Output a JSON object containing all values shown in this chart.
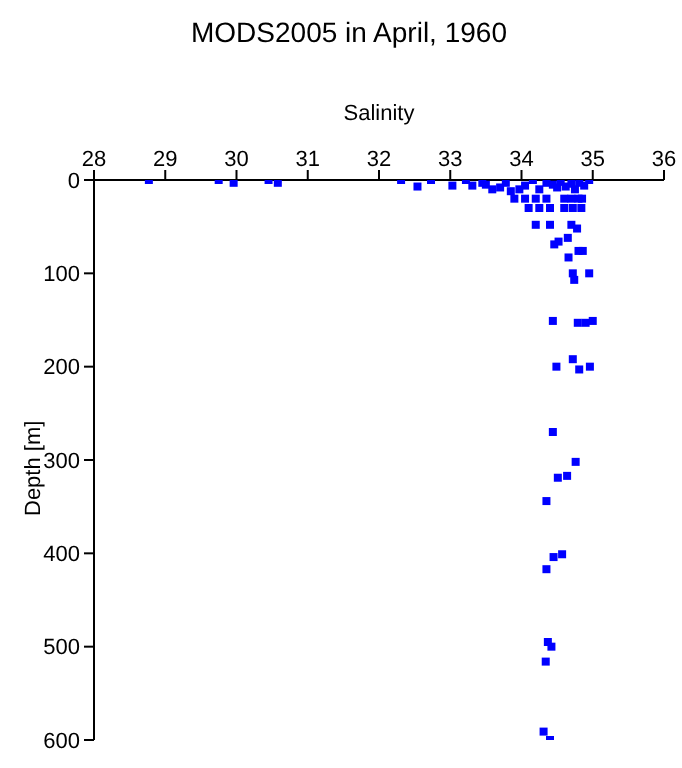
{
  "chart_data": {
    "type": "scatter",
    "title": "MODS2005 in April, 1960",
    "xlabel": "Salinity",
    "ylabel": "Depth [m]",
    "x": [
      28.77,
      29.75,
      29.96,
      30.45,
      30.58,
      32.31,
      32.54,
      32.73,
      33.03,
      33.22,
      33.31,
      33.45,
      33.5,
      33.59,
      33.7,
      33.78,
      33.85,
      33.97,
      34.05,
      34.16,
      34.25,
      34.35,
      34.44,
      34.5,
      34.55,
      34.62,
      34.7,
      34.75,
      34.81,
      34.88,
      34.95,
      33.9,
      34.05,
      34.2,
      34.35,
      34.6,
      34.7,
      34.8,
      34.85,
      34.1,
      34.25,
      34.4,
      34.6,
      34.72,
      34.84,
      34.2,
      34.4,
      34.7,
      34.78,
      34.65,
      34.46,
      34.52,
      34.8,
      34.86,
      34.66,
      34.72,
      34.95,
      34.74,
      34.44,
      34.79,
      34.9,
      35.0,
      34.49,
      34.72,
      34.81,
      34.96,
      34.44,
      34.76,
      34.51,
      34.64,
      34.35,
      34.57,
      34.45,
      34.35,
      34.37,
      34.42,
      34.34,
      34.31,
      34.4
    ],
    "values": [
      0,
      0,
      3,
      0,
      3,
      0,
      7,
      0,
      6,
      0,
      6,
      3,
      5,
      10,
      8,
      3,
      12,
      10,
      6,
      0,
      10,
      3,
      5,
      8,
      2,
      7,
      4,
      10,
      3,
      6,
      0,
      20,
      20,
      20,
      20,
      20,
      20,
      20,
      20,
      30,
      30,
      30,
      30,
      30,
      30,
      48,
      48,
      48,
      52,
      62,
      69,
      66,
      76,
      76,
      83,
      100,
      100,
      107,
      151,
      153,
      153,
      151,
      200,
      192,
      203,
      200,
      270,
      302,
      319,
      317,
      344,
      401,
      404,
      417,
      495,
      500,
      516,
      591,
      600
    ],
    "color": "#0000ff",
    "marker": "square",
    "xlim": [
      28,
      36
    ],
    "xticks": [
      28,
      29,
      30,
      31,
      32,
      33,
      34,
      35,
      36
    ],
    "ylim": [
      600,
      0
    ],
    "yticks": [
      0,
      100,
      200,
      300,
      400,
      500,
      600
    ],
    "grid": false
  }
}
